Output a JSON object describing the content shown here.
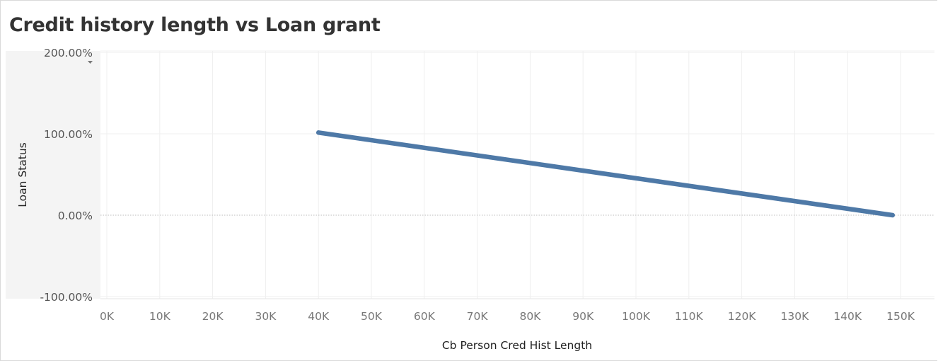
{
  "title": "Credit history length vs Loan grant",
  "chart_data": {
    "type": "line",
    "title": "Credit history length vs Loan grant",
    "xlabel": "Cb Person Cred Hist Length",
    "ylabel": "Loan Status",
    "xlim": [
      -2000,
      155000
    ],
    "ylim": [
      -110,
      210
    ],
    "x_ticks": [
      {
        "value": 0,
        "label": "0K"
      },
      {
        "value": 10000,
        "label": "10K"
      },
      {
        "value": 20000,
        "label": "20K"
      },
      {
        "value": 30000,
        "label": "30K"
      },
      {
        "value": 40000,
        "label": "40K"
      },
      {
        "value": 50000,
        "label": "50K"
      },
      {
        "value": 60000,
        "label": "60K"
      },
      {
        "value": 70000,
        "label": "70K"
      },
      {
        "value": 80000,
        "label": "80K"
      },
      {
        "value": 90000,
        "label": "90K"
      },
      {
        "value": 100000,
        "label": "100K"
      },
      {
        "value": 110000,
        "label": "110K"
      },
      {
        "value": 120000,
        "label": "120K"
      },
      {
        "value": 130000,
        "label": "130K"
      },
      {
        "value": 140000,
        "label": "140K"
      },
      {
        "value": 150000,
        "label": "150K"
      }
    ],
    "y_ticks": [
      {
        "value": 200,
        "label": "200.00%"
      },
      {
        "value": 100,
        "label": "100.00%"
      },
      {
        "value": 0,
        "label": "0.00%"
      },
      {
        "value": -100,
        "label": "-100.00%"
      }
    ],
    "grid": true,
    "series": [
      {
        "points": [
          {
            "x": 40000,
            "y": 101.5
          },
          {
            "x": 148500,
            "y": 0
          }
        ]
      }
    ],
    "colors": {
      "line": "#4e79a7",
      "grid": "#efefef",
      "zero_line": "#bdbdbd",
      "axis_panel": "#f4f4f4"
    }
  }
}
